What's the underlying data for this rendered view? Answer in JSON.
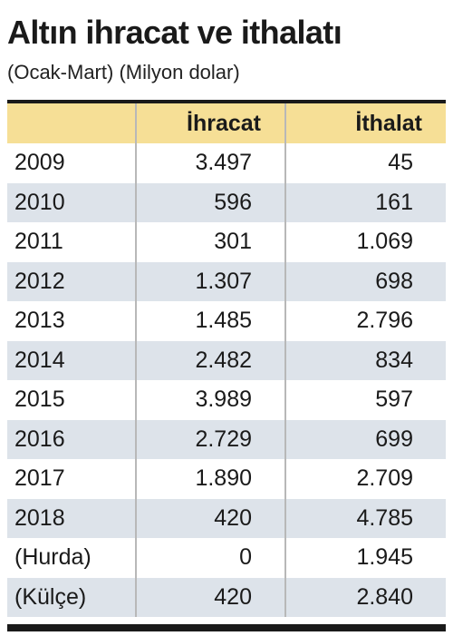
{
  "title": "Altın ihracat ve ithalatı",
  "subtitle": "(Ocak-Mart) (Milyon dolar)",
  "colors": {
    "header_fill": "#f6df96",
    "alt_row_fill": "#dde3ea",
    "rule": "#1a1a1a"
  },
  "chart_data": {
    "type": "table",
    "title": "Altın ihracat ve ithalatı",
    "subtitle": "(Ocak-Mart) (Milyon dolar)",
    "columns": [
      "",
      "İhracat",
      "İthalat"
    ],
    "rows": [
      {
        "label": "2009",
        "ihracat": "3.497",
        "ithalat": "45"
      },
      {
        "label": "2010",
        "ihracat": "596",
        "ithalat": "161"
      },
      {
        "label": "2011",
        "ihracat": "301",
        "ithalat": "1.069"
      },
      {
        "label": "2012",
        "ihracat": "1.307",
        "ithalat": "698"
      },
      {
        "label": "2013",
        "ihracat": "1.485",
        "ithalat": "2.796"
      },
      {
        "label": "2014",
        "ihracat": "2.482",
        "ithalat": "834"
      },
      {
        "label": "2015",
        "ihracat": "3.989",
        "ithalat": "597"
      },
      {
        "label": "2016",
        "ihracat": "2.729",
        "ithalat": "699"
      },
      {
        "label": "2017",
        "ihracat": "1.890",
        "ithalat": "2.709"
      },
      {
        "label": "2018",
        "ihracat": "420",
        "ithalat": "4.785"
      },
      {
        "label": "(Hurda)",
        "ihracat": "0",
        "ithalat": "1.945"
      },
      {
        "label": "(Külçe)",
        "ihracat": "420",
        "ithalat": "2.840"
      }
    ]
  }
}
